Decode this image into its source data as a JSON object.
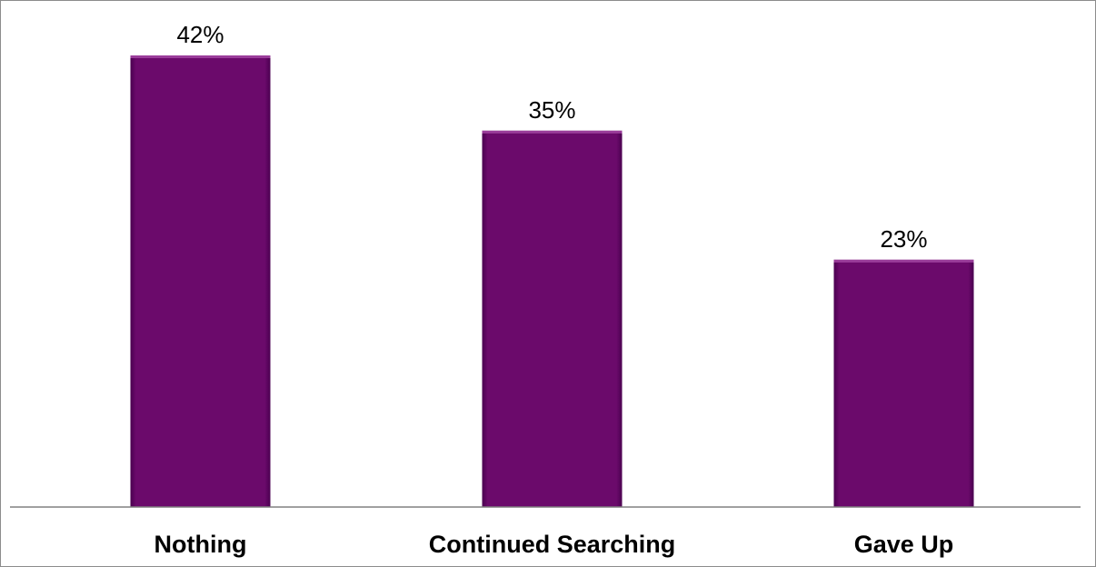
{
  "chart_data": {
    "type": "bar",
    "categories": [
      "Nothing",
      "Continued Searching",
      "Gave Up"
    ],
    "values": [
      42,
      35,
      23
    ],
    "data_labels": [
      "42%",
      "35%",
      "23%"
    ],
    "title": "",
    "xlabel": "",
    "ylabel": "",
    "ylim": [
      0,
      42
    ],
    "grid": false,
    "legend": "none",
    "y_axis_visible": false
  },
  "colors": {
    "bar_fill": "#6b0a6b",
    "bar_top_highlight": "#9a3d9a",
    "bar_edge_shadow": "#4a0050",
    "axis_line": "#808080",
    "frame_border": "#8c8c8c"
  }
}
